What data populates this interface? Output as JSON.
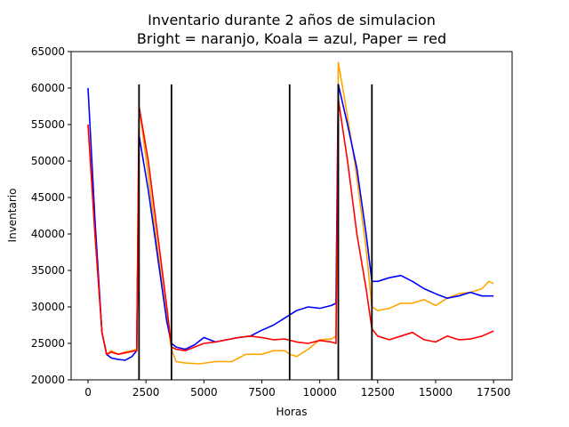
{
  "chart_data": {
    "type": "line",
    "title": "Inventario durante 2 años de simulacion",
    "subtitle": "Bright = naranjo, Koala = azul, Paper = red",
    "xlabel": "Horas",
    "ylabel": "Inventario",
    "xlim": [
      -730,
      18300
    ],
    "ylim": [
      20000,
      65000
    ],
    "xticks": [
      0,
      2500,
      5000,
      7500,
      10000,
      12500,
      15000,
      17500
    ],
    "yticks": [
      20000,
      25000,
      30000,
      35000,
      40000,
      45000,
      50000,
      55000,
      60000,
      65000
    ],
    "grid": false,
    "legend": "none",
    "colors": {
      "Bright": "#ffa500",
      "Koala": "#0000ff",
      "Paper": "#ff0000",
      "vlines": "#000000"
    },
    "vlines": {
      "x": [
        2200,
        3600,
        8700,
        10800,
        12250
      ],
      "ymin": 20000,
      "ymax": 60500
    },
    "series": [
      {
        "key": "Bright",
        "color": "#ffa500",
        "points": [
          [
            0,
            55000
          ],
          [
            300,
            40000
          ],
          [
            600,
            26500
          ],
          [
            800,
            23500
          ],
          [
            1000,
            24000
          ],
          [
            1300,
            23500
          ],
          [
            1600,
            23800
          ],
          [
            1900,
            24000
          ],
          [
            2100,
            24200
          ],
          [
            2200,
            57500
          ],
          [
            2600,
            48000
          ],
          [
            3000,
            38000
          ],
          [
            3400,
            28500
          ],
          [
            3600,
            24200
          ],
          [
            3800,
            22500
          ],
          [
            4200,
            22300
          ],
          [
            4800,
            22200
          ],
          [
            5500,
            22500
          ],
          [
            6200,
            22500
          ],
          [
            6800,
            23500
          ],
          [
            7500,
            23500
          ],
          [
            8000,
            24000
          ],
          [
            8500,
            24000
          ],
          [
            8700,
            23500
          ],
          [
            9000,
            23200
          ],
          [
            9500,
            24200
          ],
          [
            10000,
            25500
          ],
          [
            10500,
            25600
          ],
          [
            10700,
            26000
          ],
          [
            10800,
            63500
          ],
          [
            11100,
            58000
          ],
          [
            11500,
            50000
          ],
          [
            12000,
            38000
          ],
          [
            12250,
            30000
          ],
          [
            12500,
            29500
          ],
          [
            13000,
            29800
          ],
          [
            13500,
            30500
          ],
          [
            14000,
            30500
          ],
          [
            14500,
            31000
          ],
          [
            15000,
            30200
          ],
          [
            15500,
            31200
          ],
          [
            16000,
            31800
          ],
          [
            16500,
            32000
          ],
          [
            17000,
            32500
          ],
          [
            17300,
            33500
          ],
          [
            17500,
            33200
          ]
        ]
      },
      {
        "key": "Koala",
        "color": "#0000ff",
        "points": [
          [
            0,
            60000
          ],
          [
            300,
            42000
          ],
          [
            600,
            26500
          ],
          [
            800,
            23500
          ],
          [
            1000,
            23000
          ],
          [
            1300,
            22800
          ],
          [
            1600,
            22700
          ],
          [
            1900,
            23200
          ],
          [
            2100,
            24000
          ],
          [
            2200,
            53500
          ],
          [
            2600,
            46000
          ],
          [
            3000,
            37000
          ],
          [
            3400,
            28000
          ],
          [
            3600,
            25000
          ],
          [
            3800,
            24500
          ],
          [
            4200,
            24200
          ],
          [
            4600,
            24800
          ],
          [
            5000,
            25800
          ],
          [
            5500,
            25200
          ],
          [
            6000,
            25500
          ],
          [
            6500,
            25800
          ],
          [
            7000,
            26000
          ],
          [
            7500,
            26800
          ],
          [
            8000,
            27500
          ],
          [
            8500,
            28500
          ],
          [
            9000,
            29500
          ],
          [
            9500,
            30000
          ],
          [
            10000,
            29800
          ],
          [
            10500,
            30200
          ],
          [
            10700,
            30500
          ],
          [
            10800,
            60500
          ],
          [
            11200,
            55000
          ],
          [
            11600,
            49000
          ],
          [
            12000,
            40000
          ],
          [
            12250,
            33500
          ],
          [
            12500,
            33500
          ],
          [
            13000,
            34000
          ],
          [
            13500,
            34300
          ],
          [
            14000,
            33500
          ],
          [
            14500,
            32500
          ],
          [
            15000,
            31800
          ],
          [
            15500,
            31200
          ],
          [
            16000,
            31500
          ],
          [
            16500,
            32000
          ],
          [
            17000,
            31500
          ],
          [
            17500,
            31500
          ]
        ]
      },
      {
        "key": "Paper",
        "color": "#ff0000",
        "points": [
          [
            0,
            55000
          ],
          [
            300,
            40000
          ],
          [
            600,
            26500
          ],
          [
            800,
            23500
          ],
          [
            1000,
            23800
          ],
          [
            1300,
            23500
          ],
          [
            1600,
            23700
          ],
          [
            1900,
            23900
          ],
          [
            2100,
            24000
          ],
          [
            2200,
            57500
          ],
          [
            2600,
            50000
          ],
          [
            3000,
            40000
          ],
          [
            3400,
            30000
          ],
          [
            3600,
            24500
          ],
          [
            3800,
            24200
          ],
          [
            4200,
            24000
          ],
          [
            4600,
            24500
          ],
          [
            5000,
            25000
          ],
          [
            5500,
            25200
          ],
          [
            6000,
            25500
          ],
          [
            6500,
            25800
          ],
          [
            7000,
            26000
          ],
          [
            7500,
            25800
          ],
          [
            8000,
            25500
          ],
          [
            8500,
            25600
          ],
          [
            9000,
            25200
          ],
          [
            9500,
            25000
          ],
          [
            10000,
            25400
          ],
          [
            10500,
            25200
          ],
          [
            10700,
            25000
          ],
          [
            10800,
            58500
          ],
          [
            11200,
            50000
          ],
          [
            11600,
            40000
          ],
          [
            12000,
            32500
          ],
          [
            12250,
            27000
          ],
          [
            12500,
            26000
          ],
          [
            13000,
            25500
          ],
          [
            13500,
            26000
          ],
          [
            14000,
            26500
          ],
          [
            14500,
            25500
          ],
          [
            15000,
            25200
          ],
          [
            15500,
            26000
          ],
          [
            16000,
            25500
          ],
          [
            16500,
            25600
          ],
          [
            17000,
            26000
          ],
          [
            17500,
            26700
          ]
        ]
      }
    ]
  }
}
